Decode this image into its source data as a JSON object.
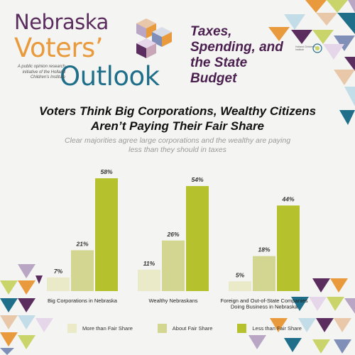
{
  "brand": {
    "line1": "Nebraska",
    "line2": "Voters’",
    "line3": "Outlook",
    "caption": "A public opinion research initiative of the Holland Children's Institute",
    "partner_text": "Holland Children's Institute"
  },
  "topic": "Taxes, Spending, and the State Budget",
  "headline": "Voters Think Big Corporations, Wealthy Citizens Aren’t Paying Their Fair Share",
  "subhead": "Clear majorities agree large corporations and the wealthy are paying less than they should in taxes",
  "colors": {
    "more": "#eaeac8",
    "about": "#d2d690",
    "less": "#b5c22e",
    "purple": "#5b2d5e",
    "orange": "#e89a3c",
    "teal": "#1f6f8b"
  },
  "chart_data": {
    "type": "bar",
    "categories": [
      "Big Corporations in Nebraska",
      "Wealthy Nebraskans",
      "Foreign and Out-of-State Companies Doing Business in Nebraska"
    ],
    "series": [
      {
        "name": "More than Fair Share",
        "values": [
          7,
          11,
          5
        ]
      },
      {
        "name": "About Fair Share",
        "values": [
          21,
          26,
          18
        ]
      },
      {
        "name": "Less than Fair Share",
        "values": [
          58,
          54,
          44
        ]
      }
    ],
    "value_suffix": "%",
    "ylim": [
      0,
      60
    ],
    "legend_position": "bottom"
  }
}
